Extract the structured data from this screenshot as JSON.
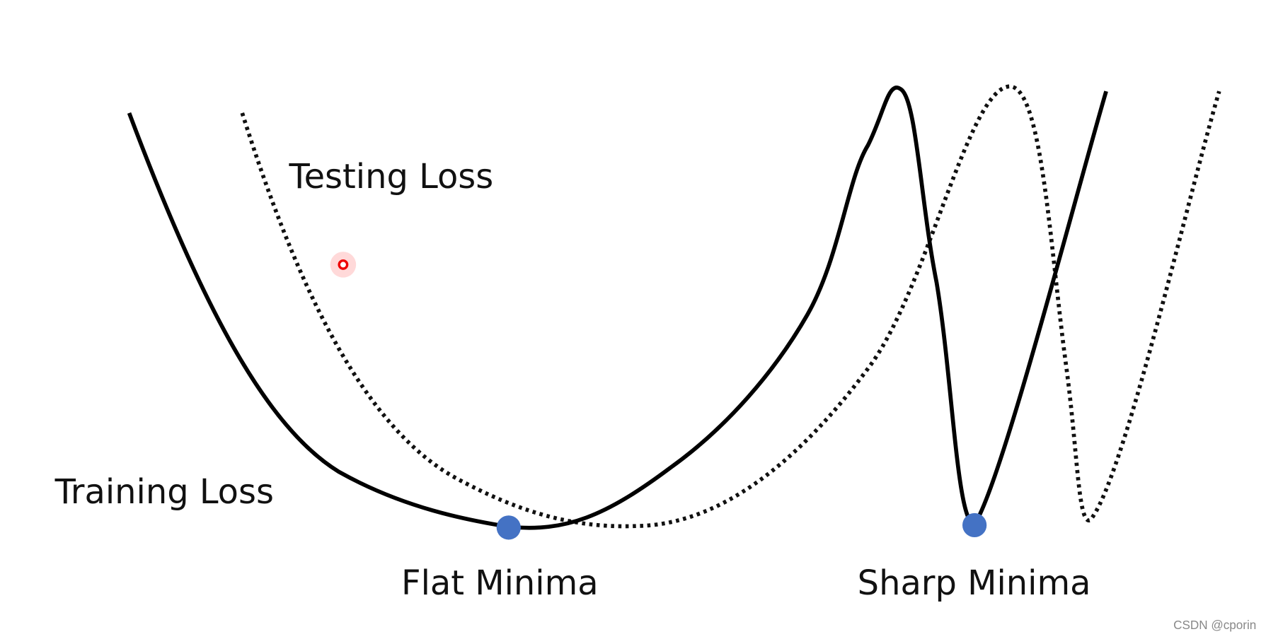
{
  "labels": {
    "testing_loss": "Testing Loss",
    "training_loss": "Training Loss",
    "flat_minima": "Flat Minima",
    "sharp_minima": "Sharp Minima"
  },
  "watermark": "CSDN @cporin"
}
